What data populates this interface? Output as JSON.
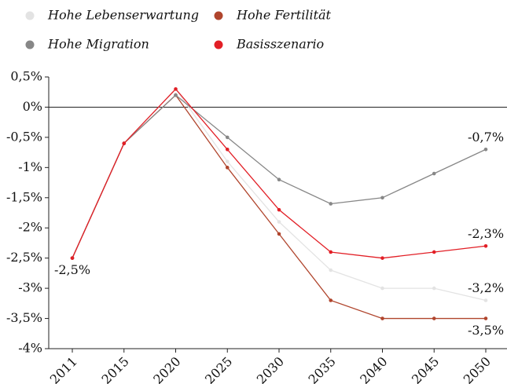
{
  "chart_data": {
    "type": "line",
    "categories": [
      "2011",
      "2015",
      "2020",
      "2025",
      "2030",
      "2035",
      "2040",
      "2045",
      "2050"
    ],
    "series": [
      {
        "name": "Hohe Lebenserwartung",
        "color": "#e3e3e3",
        "values": [
          -2.5,
          -0.6,
          0.3,
          -0.9,
          -1.9,
          -2.7,
          -3.0,
          -3.0,
          -3.2
        ],
        "value_labels": [
          null,
          null,
          null,
          null,
          null,
          null,
          null,
          null,
          "-3,2%"
        ]
      },
      {
        "name": "Hohe Fertilität",
        "color": "#b0452d",
        "values": [
          -2.5,
          -0.6,
          0.2,
          -1.0,
          -2.1,
          -3.2,
          -3.5,
          -3.5,
          -3.5
        ],
        "value_labels": [
          null,
          null,
          null,
          null,
          null,
          null,
          null,
          null,
          "-3,5%"
        ]
      },
      {
        "name": "Hohe Migration",
        "color": "#878787",
        "values": [
          -2.5,
          -0.6,
          0.2,
          -0.5,
          -1.2,
          -1.6,
          -1.5,
          -1.1,
          -0.7
        ],
        "value_labels": [
          null,
          null,
          null,
          null,
          null,
          null,
          null,
          null,
          "-0,7%"
        ]
      },
      {
        "name": "Basisszenario",
        "color": "#e21f26",
        "values": [
          -2.5,
          -0.6,
          0.3,
          -0.7,
          -1.7,
          -2.4,
          -2.5,
          -2.4,
          -2.3
        ],
        "value_labels": [
          "-2,5%",
          null,
          null,
          null,
          null,
          null,
          null,
          null,
          "-2,3%"
        ]
      }
    ],
    "ylim": [
      -4,
      0.5
    ],
    "yticks": [
      {
        "value": 0.5,
        "label": "0,5%"
      },
      {
        "value": 0,
        "label": "0%"
      },
      {
        "value": -0.5,
        "label": "-0,5%"
      },
      {
        "value": -1,
        "label": "-1%"
      },
      {
        "value": -1.5,
        "label": "-1,5%"
      },
      {
        "value": -2,
        "label": "-2%"
      },
      {
        "value": -2.5,
        "label": "-2,5%"
      },
      {
        "value": -3,
        "label": "-3%"
      },
      {
        "value": -3.5,
        "label": "-3,5%"
      },
      {
        "value": -4,
        "label": "-4%"
      }
    ],
    "legend": "top-left",
    "grid": false
  }
}
